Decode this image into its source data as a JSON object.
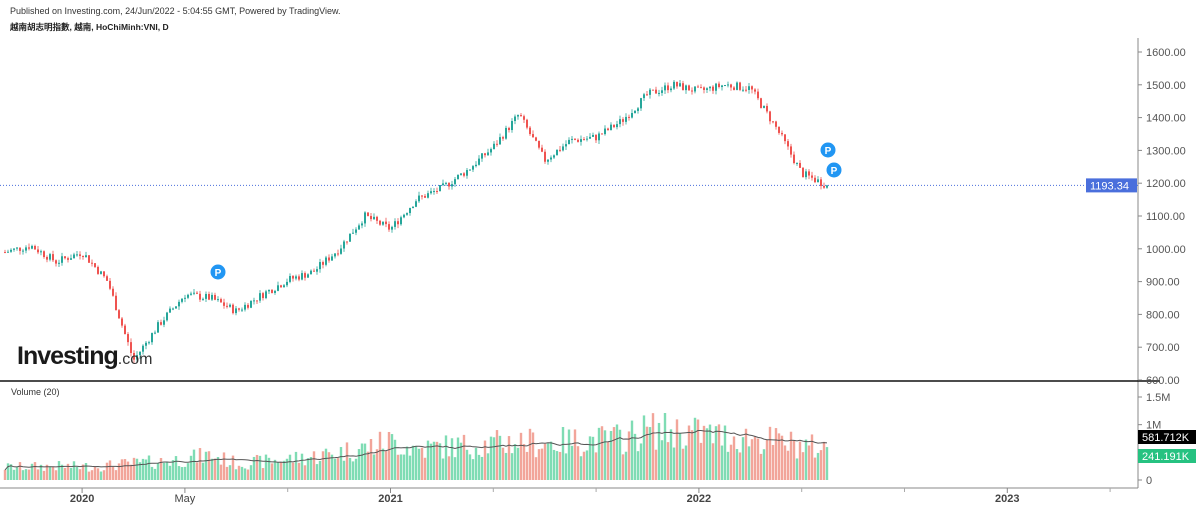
{
  "header": {
    "published": "Published on Investing.com, 24/Jun/2022 - 5:04:55 GMT, Powered by TradingView.",
    "symbol": "越南胡志明指數, 越南, HoChiMinh:VNI, D"
  },
  "logo": {
    "name": "Investing",
    "suffix": ".com"
  },
  "colors": {
    "up": "#26a69a",
    "down": "#ef5350",
    "vol_up": "#7fdcb4",
    "vol_down": "#f2a59a",
    "last_price": "#4a6fdc",
    "last_vol": "#000000",
    "vol_ma_value": "#26c281",
    "marker": "#2196f3"
  },
  "chart_data": [
    {
      "type": "candlestick",
      "title": "",
      "ylim": [
        600,
        1640
      ],
      "y_ticks": [
        "1600.00",
        "1500.00",
        "1400.00",
        "1300.00",
        "1200.00",
        "1100.00",
        "1000.00",
        "900.00",
        "800.00",
        "700.00",
        "600.00"
      ],
      "x_ticks": [
        "2020",
        "May",
        "2021",
        "2022",
        "2023"
      ],
      "last_price": "1193.34",
      "monthly_close": {
        "months": [
          "2019-10",
          "2019-11",
          "2019-12",
          "2020-01",
          "2020-02",
          "2020-03",
          "2020-04",
          "2020-05",
          "2020-06",
          "2020-07",
          "2020-08",
          "2020-09",
          "2020-10",
          "2020-11",
          "2020-12",
          "2021-01",
          "2021-02",
          "2021-03",
          "2021-04",
          "2021-05",
          "2021-06",
          "2021-07",
          "2021-08",
          "2021-09",
          "2021-10",
          "2021-11",
          "2021-12",
          "2022-01",
          "2022-02",
          "2022-03",
          "2022-04",
          "2022-05",
          "2022-06"
        ],
        "values": [
          990,
          1010,
          960,
          990,
          900,
          660,
          770,
          860,
          850,
          810,
          860,
          905,
          930,
          1000,
          1100,
          1060,
          1150,
          1185,
          1240,
          1310,
          1410,
          1270,
          1330,
          1340,
          1390,
          1470,
          1500,
          1480,
          1500,
          1490,
          1370,
          1230,
          1193.34
        ]
      },
      "markers": [
        {
          "label": "P",
          "date": "2020-06",
          "price": 915
        },
        {
          "label": "P",
          "date": "2022-06",
          "price": 1290
        },
        {
          "label": "P",
          "date": "2022-06",
          "price": 1230
        }
      ]
    },
    {
      "type": "bar",
      "title": "Volume (20)",
      "y_ticks": [
        "1.5M",
        "1M",
        "0"
      ],
      "ylim": [
        0,
        1750000
      ],
      "last_volume": "581.712K",
      "ma_value": "241.191K",
      "monthly_avg_volume": [
        230000,
        240000,
        250000,
        240000,
        260000,
        300000,
        330000,
        380000,
        450000,
        300000,
        330000,
        380000,
        420000,
        500000,
        580000,
        700000,
        560000,
        600000,
        620000,
        650000,
        700000,
        660000,
        700000,
        720000,
        750000,
        900000,
        880000,
        850000,
        780000,
        760000,
        700000,
        620000,
        560000
      ]
    }
  ]
}
